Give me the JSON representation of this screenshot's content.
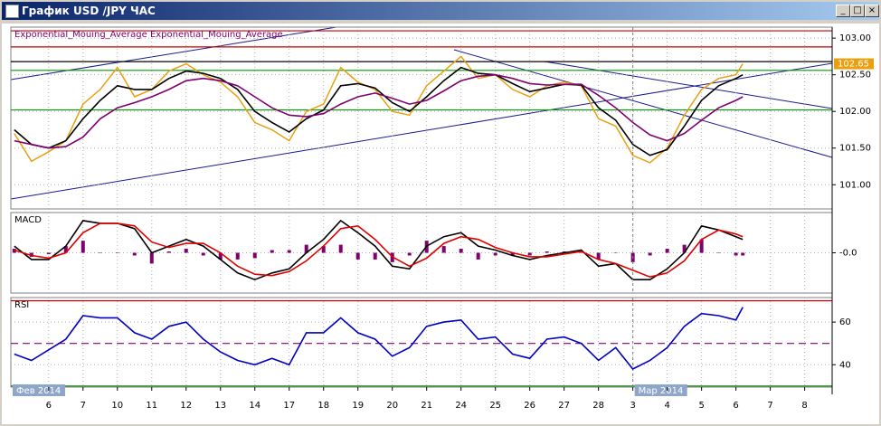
{
  "window_title": "График USD /JPY ЧАС",
  "chart_data": [
    {
      "type": "line",
      "title": "Exponential_Mouing_Average Exponential_Mouing_Average",
      "x": [
        -1,
        -0.5,
        0,
        0.5,
        1,
        1.5,
        2,
        2.5,
        3,
        3.5,
        4,
        4.5,
        5,
        5.5,
        6,
        6.5,
        7,
        7.5,
        8,
        8.5,
        9,
        9.5,
        10,
        10.5,
        11,
        11.5,
        12,
        12.5,
        13,
        13.5,
        14,
        14.5,
        15,
        15.5,
        16,
        16.5,
        17,
        17.5,
        18,
        18.5,
        19,
        19.5,
        20,
        20.2
      ],
      "xlim": [
        -1.1,
        22.8
      ],
      "ylim": [
        100.67,
        103.15
      ],
      "yticks": [
        {
          "value": 103,
          "label": "103.00"
        },
        {
          "value": 102.5,
          "label": "102.50"
        },
        {
          "value": 102,
          "label": "102.00"
        },
        {
          "value": 101.5,
          "label": "101.50"
        },
        {
          "value": 101,
          "label": "101.00"
        }
      ],
      "grid": true,
      "levels": [
        {
          "value": 103.1,
          "color": "#c00000"
        },
        {
          "value": 102.88,
          "color": "#c00000"
        },
        {
          "value": 102.68,
          "color": "#000000"
        },
        {
          "value": 102.56,
          "color": "#00a000"
        },
        {
          "value": 102.02,
          "color": "#00a000"
        }
      ],
      "last_price": {
        "value": 102.65,
        "label": "102.65",
        "color": "#e8a010"
      },
      "series": [
        {
          "color": "#e8a010",
          "values": [
            101.7,
            101.32,
            101.45,
            101.6,
            102.1,
            102.3,
            102.6,
            102.2,
            102.3,
            102.55,
            102.65,
            102.5,
            102.4,
            102.2,
            101.85,
            101.75,
            101.6,
            102.0,
            102.1,
            102.6,
            102.4,
            102.3,
            102.0,
            101.95,
            102.35,
            102.55,
            102.75,
            102.45,
            102.5,
            102.3,
            102.2,
            102.35,
            102.4,
            102.35,
            101.9,
            101.8,
            101.4,
            101.3,
            101.5,
            101.95,
            102.3,
            102.45,
            102.5,
            102.65
          ]
        },
        {
          "name": "Exponential_Mouing_Average",
          "color": "#000000",
          "values": [
            101.75,
            101.55,
            101.5,
            101.6,
            101.9,
            102.15,
            102.35,
            102.3,
            102.3,
            102.45,
            102.55,
            102.52,
            102.45,
            102.3,
            102.0,
            101.85,
            101.72,
            101.9,
            102.02,
            102.35,
            102.38,
            102.32,
            102.12,
            102.0,
            102.2,
            102.42,
            102.6,
            102.52,
            102.5,
            102.38,
            102.27,
            102.32,
            102.37,
            102.36,
            102.05,
            101.88,
            101.55,
            101.4,
            101.48,
            101.8,
            102.15,
            102.35,
            102.45,
            102.5
          ]
        },
        {
          "name": "Exponential_Mouing_Average",
          "color": "#800070",
          "values": [
            101.6,
            101.55,
            101.5,
            101.52,
            101.65,
            101.9,
            102.05,
            102.12,
            102.2,
            102.3,
            102.42,
            102.45,
            102.42,
            102.35,
            102.2,
            102.05,
            101.95,
            101.93,
            101.97,
            102.1,
            102.2,
            102.25,
            102.18,
            102.1,
            102.15,
            102.28,
            102.42,
            102.48,
            102.5,
            102.45,
            102.38,
            102.36,
            102.37,
            102.37,
            102.22,
            102.05,
            101.85,
            101.68,
            101.6,
            101.7,
            101.88,
            102.05,
            102.15,
            102.2
          ]
        }
      ]
    },
    {
      "type": "line",
      "title": "MACD",
      "x": [
        -1,
        -0.5,
        0,
        0.5,
        1,
        1.5,
        2,
        2.5,
        3,
        3.5,
        4,
        4.5,
        5,
        5.5,
        6,
        6.5,
        7,
        7.5,
        8,
        8.5,
        9,
        9.5,
        10,
        10.5,
        11,
        11.5,
        12,
        12.5,
        13,
        13.5,
        14,
        14.5,
        15,
        15.5,
        16,
        16.5,
        17,
        17.5,
        18,
        18.5,
        19,
        19.5,
        20,
        20.2
      ],
      "xlim": [
        -1.1,
        22.8
      ],
      "ylim": [
        -0.3,
        0.3
      ],
      "yticks": [
        {
          "value": 0,
          "label": "-0.0"
        }
      ],
      "grid": true,
      "series": [
        {
          "color": "#800070",
          "style": "histogram",
          "values": [
            0.03,
            -0.03,
            -0.01,
            0.05,
            0.09,
            0,
            0,
            -0.02,
            -0.08,
            0.01,
            0.03,
            -0.02,
            -0.05,
            -0.05,
            -0.04,
            0.02,
            0.02,
            0.06,
            0.05,
            0.06,
            -0.05,
            -0.05,
            -0.07,
            -0.02,
            0.09,
            0.05,
            0.03,
            -0.05,
            -0.02,
            -0.02,
            -0.02,
            0.01,
            0.01,
            0.01,
            -0.05,
            0,
            -0.07,
            -0.02,
            0.03,
            0.06,
            0.1,
            0,
            -0.02,
            -0.02
          ]
        },
        {
          "color": "#000000",
          "values": [
            0.05,
            -0.05,
            -0.05,
            0.05,
            0.24,
            0.22,
            0.22,
            0.18,
            0.0,
            0.05,
            0.1,
            0.05,
            -0.05,
            -0.15,
            -0.2,
            -0.15,
            -0.12,
            0.0,
            0.1,
            0.24,
            0.15,
            0.05,
            -0.1,
            -0.12,
            0.05,
            0.12,
            0.15,
            0.05,
            0.02,
            -0.02,
            -0.05,
            -0.02,
            0.0,
            0.02,
            -0.1,
            -0.08,
            -0.2,
            -0.2,
            -0.12,
            0.0,
            0.2,
            0.17,
            0.12,
            0.1
          ]
        },
        {
          "color": "#e00000",
          "values": [
            0.02,
            -0.02,
            -0.04,
            0.0,
            0.15,
            0.22,
            0.22,
            0.2,
            0.08,
            0.04,
            0.07,
            0.07,
            0.0,
            -0.1,
            -0.16,
            -0.17,
            -0.14,
            -0.06,
            0.05,
            0.18,
            0.2,
            0.1,
            -0.03,
            -0.1,
            -0.04,
            0.07,
            0.12,
            0.1,
            0.04,
            0.0,
            -0.03,
            -0.03,
            -0.01,
            0.01,
            -0.05,
            -0.08,
            -0.13,
            -0.18,
            -0.15,
            -0.06,
            0.1,
            0.17,
            0.14,
            0.12
          ]
        }
      ]
    },
    {
      "type": "line",
      "title": "RSI",
      "x": [
        -1,
        -0.5,
        0,
        0.5,
        1,
        1.5,
        2,
        2.5,
        3,
        3.5,
        4,
        4.5,
        5,
        5.5,
        6,
        6.5,
        7,
        7.5,
        8,
        8.5,
        9,
        9.5,
        10,
        10.5,
        11,
        11.5,
        12,
        12.5,
        13,
        13.5,
        14,
        14.5,
        15,
        15.5,
        16,
        16.5,
        17,
        17.5,
        18,
        18.5,
        19,
        19.5,
        20,
        20.2
      ],
      "xlim": [
        -1.1,
        22.8
      ],
      "ylim": [
        29.5,
        71.5
      ],
      "yticks": [
        60,
        40
      ],
      "grid": true,
      "levels": [
        {
          "value": 70,
          "color": "#c00000"
        },
        {
          "value": 50,
          "color": "#800070",
          "dashed": true
        },
        {
          "value": 30,
          "color": "#008000"
        }
      ],
      "xticks": [
        {
          "value": 0,
          "label": "6"
        },
        {
          "value": 1,
          "label": "7"
        },
        {
          "value": 2,
          "label": "10"
        },
        {
          "value": 3,
          "label": "11"
        },
        {
          "value": 4,
          "label": "12"
        },
        {
          "value": 5,
          "label": "13"
        },
        {
          "value": 6,
          "label": "14"
        },
        {
          "value": 7,
          "label": "17"
        },
        {
          "value": 8,
          "label": "18"
        },
        {
          "value": 9,
          "label": "19"
        },
        {
          "value": 10,
          "label": "20"
        },
        {
          "value": 11,
          "label": "21"
        },
        {
          "value": 12,
          "label": "24"
        },
        {
          "value": 13,
          "label": "25"
        },
        {
          "value": 14,
          "label": "26"
        },
        {
          "value": 15,
          "label": "27"
        },
        {
          "value": 16,
          "label": "28"
        },
        {
          "value": 17,
          "label": "3"
        },
        {
          "value": 18,
          "label": "4"
        },
        {
          "value": 19,
          "label": "5"
        },
        {
          "value": 20,
          "label": "6"
        },
        {
          "value": 21,
          "label": "7"
        },
        {
          "value": 22,
          "label": "8"
        }
      ],
      "period_labels": [
        {
          "value": -1.1,
          "label": "Фев 2014"
        },
        {
          "value": 17,
          "label": "Мар 2014"
        }
      ],
      "series": [
        {
          "color": "#0000c0",
          "values": [
            45,
            42,
            47,
            52,
            63,
            62,
            62,
            55,
            52,
            58,
            60,
            52,
            46,
            42,
            40,
            43,
            40,
            55,
            55,
            62,
            55,
            52,
            44,
            48,
            58,
            60,
            61,
            52,
            53,
            45,
            43,
            52,
            53,
            50,
            42,
            48,
            38,
            42,
            48,
            58,
            64,
            63,
            61,
            67
          ]
        }
      ]
    }
  ]
}
